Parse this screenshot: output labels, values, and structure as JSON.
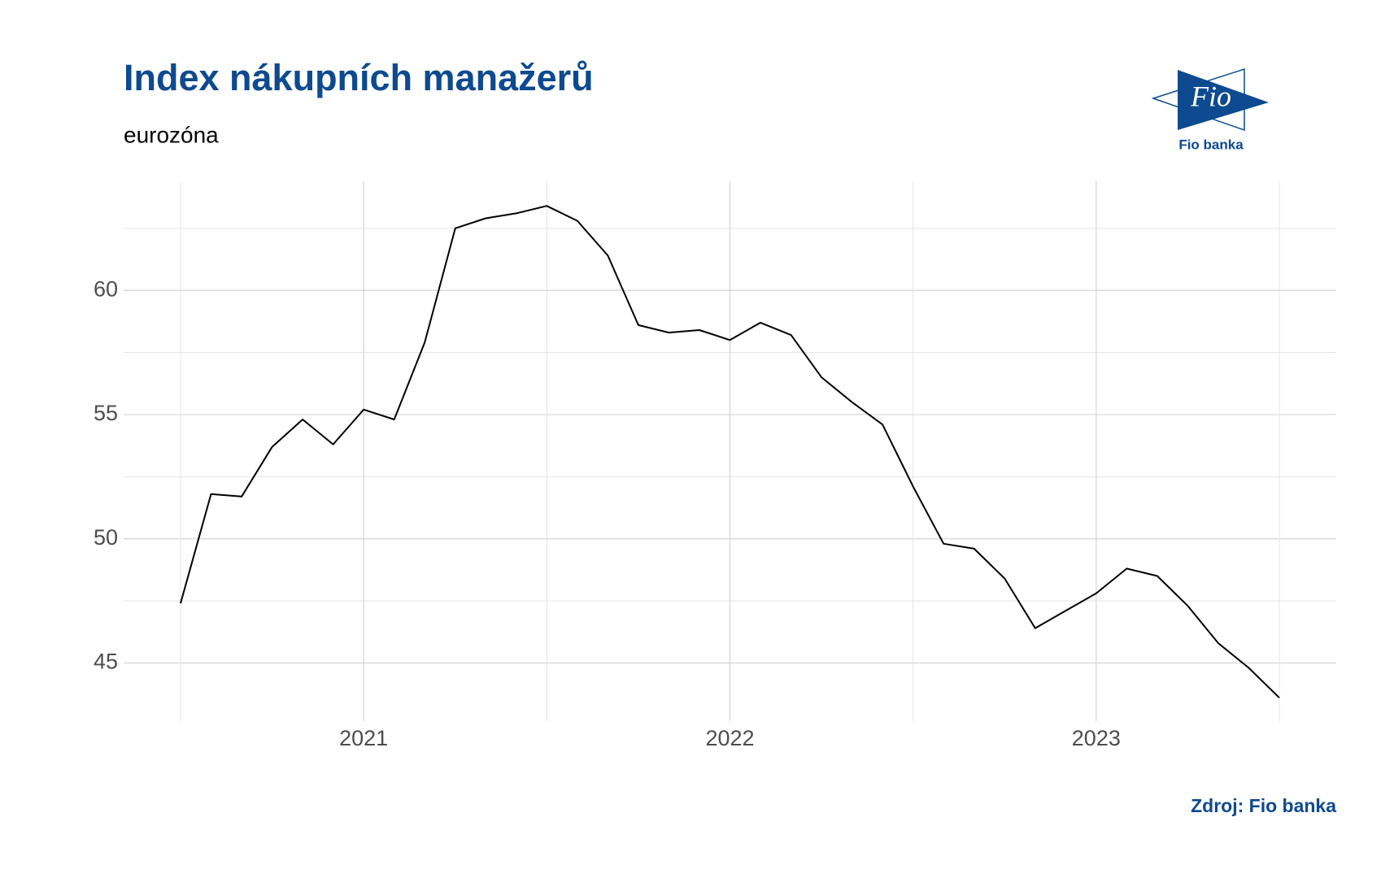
{
  "chart_data": {
    "type": "line",
    "title": "Index nákupních manažerů",
    "subtitle": "eurozóna",
    "source": "Zdroj: Fio banka",
    "categories": [
      null,
      null,
      null,
      null,
      null,
      null,
      "2021",
      null,
      null,
      null,
      null,
      null,
      null,
      null,
      null,
      null,
      null,
      null,
      "2022",
      null,
      null,
      null,
      null,
      null,
      null,
      null,
      null,
      null,
      null,
      null,
      "2023",
      null,
      null,
      null,
      null,
      null,
      null
    ],
    "series": [
      {
        "color": "#000000",
        "values": [
          47.4,
          51.8,
          51.7,
          53.7,
          54.8,
          53.8,
          55.2,
          54.8,
          57.9,
          62.5,
          62.9,
          63.1,
          63.4,
          62.8,
          61.4,
          58.6,
          58.3,
          58.4,
          58.0,
          58.7,
          58.2,
          56.5,
          55.5,
          54.6,
          52.1,
          49.8,
          49.6,
          48.4,
          46.4,
          47.1,
          47.8,
          48.8,
          48.5,
          47.3,
          45.8,
          44.8,
          43.6
        ]
      }
    ],
    "ylim": [
      42.66,
      64.39
    ],
    "yticks": [
      45,
      50,
      55,
      60
    ],
    "grid": true
  },
  "logo": {
    "mark": "Fio",
    "name": "Fio banka"
  }
}
